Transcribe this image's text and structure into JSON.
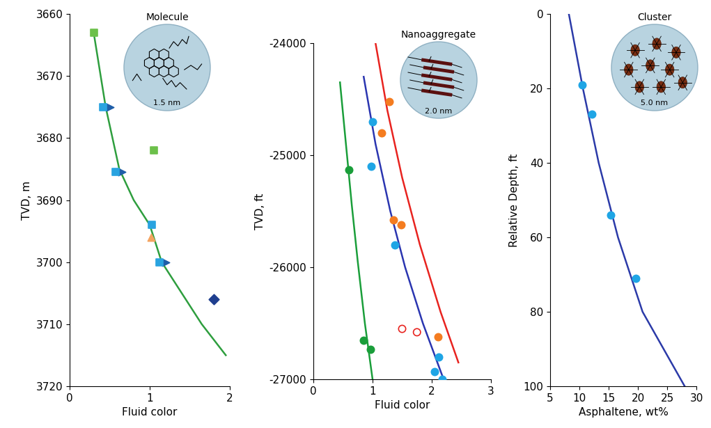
{
  "chart_data": [
    {
      "type": "scatter",
      "x_label": "Fluid color",
      "y_label": "TVD, m",
      "xlim": [
        0,
        2
      ],
      "xticks": [
        0,
        1,
        2
      ],
      "ylim": [
        3720,
        3660
      ],
      "yticks": [
        3660,
        3670,
        3680,
        3690,
        3700,
        3710,
        3720
      ],
      "inset": {
        "title": "Molecule",
        "size": "1.5 nm"
      },
      "series": [
        {
          "type": "line",
          "color": "#2e9e3e",
          "x": [
            0.3,
            0.45,
            0.62,
            0.8,
            1.0,
            1.15,
            1.4,
            1.65,
            1.95
          ],
          "values": [
            3663,
            3675,
            3685,
            3690,
            3694,
            3700,
            3705,
            3710,
            3715
          ]
        },
        {
          "type": "scatter",
          "color": "#1f5ea8",
          "marker": "arrow",
          "x": [
            0.5,
            0.65,
            1.2
          ],
          "values": [
            3675,
            3685.5,
            3700
          ]
        },
        {
          "type": "scatter",
          "color": "#29a3e0",
          "marker": "square",
          "x": [
            0.42,
            0.57,
            1.03,
            1.12
          ],
          "values": [
            3675,
            3685.5,
            3694,
            3700
          ]
        },
        {
          "type": "scatter",
          "color": "#1f3f8f",
          "marker": "diamond",
          "x": [
            1.8
          ],
          "values": [
            3706
          ]
        },
        {
          "type": "scatter",
          "color": "#f4a460",
          "marker": "triangle",
          "x": [
            1.02
          ],
          "values": [
            3696
          ]
        },
        {
          "type": "scatter",
          "color": "#6cc04a",
          "marker": "square",
          "x": [
            0.3,
            1.05
          ],
          "values": [
            3663,
            3682
          ]
        }
      ]
    },
    {
      "type": "scatter",
      "x_label": "Fluid color",
      "y_label": "TVD, ft",
      "xlim": [
        0,
        3
      ],
      "xticks": [
        0,
        1,
        2,
        3
      ],
      "ylim": [
        -27000,
        -24000
      ],
      "yticks": [
        -27000,
        -26000,
        -25000,
        -24000
      ],
      "inset": {
        "title": "Nanoaggregate",
        "size": "2.0 nm"
      },
      "series": [
        {
          "type": "line",
          "color": "#1a9e3a",
          "x": [
            0.45,
            0.55,
            0.65,
            0.75,
            0.87,
            1.0
          ],
          "values": [
            -24350,
            -24900,
            -25450,
            -25950,
            -26500,
            -27000
          ]
        },
        {
          "type": "line",
          "color": "#2a35b0",
          "x": [
            0.85,
            1.05,
            1.3,
            1.55,
            1.85,
            2.2
          ],
          "values": [
            -24300,
            -24900,
            -25500,
            -26000,
            -26500,
            -27000
          ]
        },
        {
          "type": "line",
          "color": "#e8231f",
          "x": [
            1.05,
            1.25,
            1.5,
            1.8,
            2.15,
            2.45
          ],
          "values": [
            -24000,
            -24600,
            -25200,
            -25800,
            -26400,
            -26850
          ]
        },
        {
          "type": "scatter",
          "color": "#1a9e3a",
          "marker": "circle",
          "x": [
            0.6,
            0.85,
            0.97
          ],
          "values": [
            -25130,
            -26650,
            -26730
          ]
        },
        {
          "type": "scatter",
          "color": "#1fa5e5",
          "marker": "circle",
          "x": [
            1.0,
            0.98,
            1.38,
            2.12,
            2.05,
            2.18
          ],
          "values": [
            -24700,
            -25100,
            -25800,
            -26800,
            -26930,
            -27000
          ]
        },
        {
          "type": "scatter",
          "color": "#f47c20",
          "marker": "circle",
          "x": [
            1.28,
            1.15,
            1.35,
            1.48,
            2.1
          ],
          "values": [
            -24520,
            -24800,
            -25580,
            -25620,
            -26620
          ]
        },
        {
          "type": "scatter",
          "color": "#e8231f",
          "marker": "open_circle",
          "x": [
            1.5,
            1.75
          ],
          "values": [
            -26550,
            -26580
          ]
        }
      ]
    },
    {
      "type": "scatter",
      "x_label": "Asphaltene, wt%",
      "y_label": "Relative Depth, ft",
      "xlim": [
        5,
        30
      ],
      "xticks": [
        5,
        10,
        15,
        20,
        25,
        30
      ],
      "ylim": [
        100,
        0
      ],
      "yticks": [
        0,
        20,
        40,
        60,
        80,
        100
      ],
      "inset": {
        "title": "Cluster",
        "size": "5.0 nm"
      },
      "series": [
        {
          "type": "line",
          "color": "#2b3aa8",
          "x": [
            8.2,
            10.6,
            13.3,
            16.6,
            20.8,
            28.0
          ],
          "values": [
            0,
            20,
            40,
            60,
            80,
            100
          ]
        },
        {
          "type": "scatter",
          "color": "#1fa5e5",
          "marker": "circle",
          "x": [
            10.5,
            12.2,
            15.3,
            19.6
          ],
          "values": [
            19,
            27,
            54,
            71
          ]
        }
      ]
    }
  ]
}
